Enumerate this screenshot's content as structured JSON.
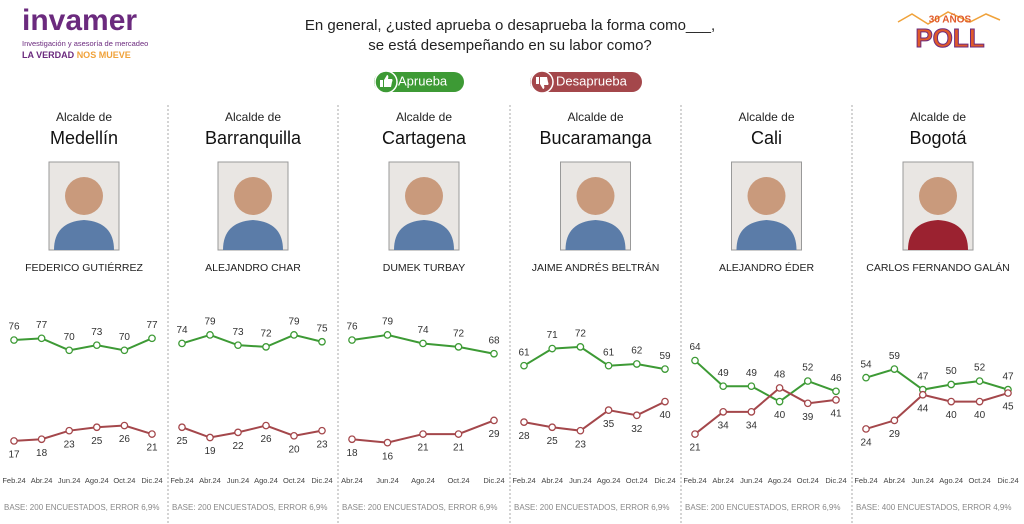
{
  "header": {
    "brand": "invamer",
    "brand_tagline": "Investigación y asesoría de mercadeo",
    "slogan_a": "LA VERDAD",
    "slogan_b": "NOS MUEVE",
    "question_line1": "En general, ¿usted aprueba o desaprueba la forma como___,",
    "question_line2": "se está desempeñando en su labor como?",
    "legend_approve": "Aprueba",
    "legend_disapprove": "Desaprueba",
    "badge_years": "30 AÑOS",
    "badge_poll": "POLL"
  },
  "chart_data": [
    {
      "type": "line",
      "title_prefix": "Alcalde de",
      "title": "Medellín",
      "person": "FEDERICO GUTIÉRREZ",
      "categories": [
        "Feb.24",
        "Abr.24",
        "Jun.24",
        "Ago.24",
        "Oct.24",
        "Dic.24"
      ],
      "series": [
        {
          "color": "#3d9a35",
          "values": [
            76,
            77,
            70,
            73,
            70,
            77
          ]
        },
        {
          "color": "#a4474b",
          "values": [
            17,
            18,
            23,
            25,
            26,
            21
          ]
        }
      ],
      "ylim": [
        0,
        100
      ],
      "base": "BASE: 200 ENCUESTADOS, ERROR 6,9%"
    },
    {
      "type": "line",
      "title_prefix": "Alcalde de",
      "title": "Barranquilla",
      "person": "ALEJANDRO CHAR",
      "categories": [
        "Feb.24",
        "Abr.24",
        "Jun.24",
        "Ago.24",
        "Oct.24",
        "Dic.24"
      ],
      "series": [
        {
          "color": "#3d9a35",
          "values": [
            74,
            79,
            73,
            72,
            79,
            75
          ]
        },
        {
          "color": "#a4474b",
          "values": [
            25,
            19,
            22,
            26,
            20,
            23
          ]
        }
      ],
      "ylim": [
        0,
        100
      ],
      "base": "BASE: 200 ENCUESTADOS, ERROR 6,9%"
    },
    {
      "type": "line",
      "title_prefix": "Alcalde de",
      "title": "Cartagena",
      "person": "DUMEK TURBAY",
      "categories": [
        "Abr.24",
        "Jun.24",
        "Ago.24",
        "Oct.24",
        "Dic.24"
      ],
      "series": [
        {
          "color": "#3d9a35",
          "values": [
            76,
            79,
            74,
            72,
            68
          ]
        },
        {
          "color": "#a4474b",
          "values": [
            18,
            16,
            21,
            21,
            29
          ]
        }
      ],
      "ylim": [
        0,
        100
      ],
      "base": "BASE: 200 ENCUESTADOS, ERROR 6,9%"
    },
    {
      "type": "line",
      "title_prefix": "Alcalde de",
      "title": "Bucaramanga",
      "person": "JAIME ANDRÉS BELTRÁN",
      "categories": [
        "Feb.24",
        "Abr.24",
        "Jun.24",
        "Ago.24",
        "Oct.24",
        "Dic.24"
      ],
      "series": [
        {
          "color": "#3d9a35",
          "values": [
            61,
            71,
            72,
            61,
            62,
            59
          ]
        },
        {
          "color": "#a4474b",
          "values": [
            28,
            25,
            23,
            35,
            32,
            40
          ]
        }
      ],
      "ylim": [
        0,
        100
      ],
      "base": "BASE: 200 ENCUESTADOS, ERROR 6,9%"
    },
    {
      "type": "line",
      "title_prefix": "Alcalde de",
      "title": "Cali",
      "person": "ALEJANDRO ÉDER",
      "categories": [
        "Feb.24",
        "Abr.24",
        "Jun.24",
        "Ago.24",
        "Oct.24",
        "Dic.24"
      ],
      "series": [
        {
          "color": "#3d9a35",
          "values": [
            64,
            49,
            49,
            40,
            52,
            46
          ]
        },
        {
          "color": "#a4474b",
          "values": [
            21,
            34,
            34,
            48,
            39,
            41
          ]
        }
      ],
      "ylim": [
        0,
        100
      ],
      "base": "BASE: 200 ENCUESTADOS, ERROR 6,9%"
    },
    {
      "type": "line",
      "title_prefix": "Alcalde de",
      "title": "Bogotá",
      "person": "CARLOS FERNANDO GALÁN",
      "categories": [
        "Feb.24",
        "Abr.24",
        "Jun.24",
        "Ago.24",
        "Oct.24",
        "Dic.24"
      ],
      "series": [
        {
          "color": "#3d9a35",
          "values": [
            54,
            59,
            47,
            50,
            52,
            47
          ]
        },
        {
          "color": "#a4474b",
          "values": [
            24,
            29,
            44,
            40,
            40,
            45
          ]
        }
      ],
      "ylim": [
        0,
        100
      ],
      "base": "BASE: 400 ENCUESTADOS, ERROR 4,9%"
    }
  ]
}
